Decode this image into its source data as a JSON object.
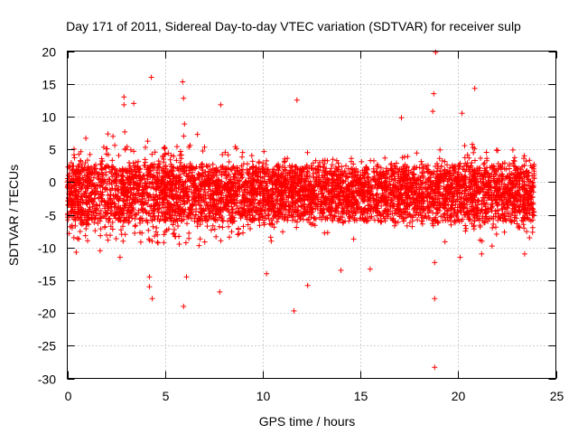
{
  "chart_data": {
    "type": "scatter",
    "title": "Day 171 of 2011, Sidereal Day-to-day VTEC variation (SDTVAR) for receiver sulp",
    "xlabel": "GPS time / hours",
    "ylabel": "SDTVAR / TECUs",
    "xlim": [
      0,
      25
    ],
    "ylim": [
      -30,
      20
    ],
    "xticks": [
      0,
      5,
      10,
      15,
      20,
      25
    ],
    "yticks": [
      -30,
      -25,
      -20,
      -15,
      -10,
      -5,
      0,
      5,
      10,
      15,
      20
    ],
    "grid": true,
    "marker": "+",
    "series_color": "#ff0000",
    "data_extent_x": [
      0,
      23.9
    ],
    "bulk_band": {
      "center": -1.5,
      "typical_range": [
        -8,
        6
      ]
    },
    "outliers": [
      {
        "x": 18.85,
        "y": 19.8
      },
      {
        "x": 18.8,
        "y": -28.3
      },
      {
        "x": 4.3,
        "y": 16.0
      },
      {
        "x": 5.9,
        "y": 15.3
      },
      {
        "x": 2.9,
        "y": 13.0
      },
      {
        "x": 11.75,
        "y": 12.5
      },
      {
        "x": 18.75,
        "y": 13.5
      },
      {
        "x": 20.85,
        "y": 14.3
      },
      {
        "x": 5.95,
        "y": 12.8
      },
      {
        "x": 2.9,
        "y": 11.8
      },
      {
        "x": 7.85,
        "y": 11.8
      },
      {
        "x": 3.4,
        "y": 12.0
      },
      {
        "x": 17.1,
        "y": 9.8
      },
      {
        "x": 18.7,
        "y": 10.8
      },
      {
        "x": 20.2,
        "y": 10.5
      },
      {
        "x": 11.6,
        "y": -19.7
      },
      {
        "x": 5.95,
        "y": -19.0
      },
      {
        "x": 18.8,
        "y": -17.8
      },
      {
        "x": 7.8,
        "y": -16.8
      },
      {
        "x": 4.35,
        "y": -17.8
      },
      {
        "x": 4.2,
        "y": -16.0
      },
      {
        "x": 12.3,
        "y": -15.8
      },
      {
        "x": 4.2,
        "y": -14.5
      },
      {
        "x": 14.0,
        "y": -13.5
      },
      {
        "x": 6.1,
        "y": -14.5
      },
      {
        "x": 10.2,
        "y": -14.0
      },
      {
        "x": 15.5,
        "y": -13.3
      },
      {
        "x": 18.8,
        "y": -12.3
      },
      {
        "x": 20.1,
        "y": -11.5
      },
      {
        "x": 21.2,
        "y": -11.0
      },
      {
        "x": 23.4,
        "y": -11.0
      },
      {
        "x": 2.7,
        "y": -11.5
      }
    ]
  }
}
